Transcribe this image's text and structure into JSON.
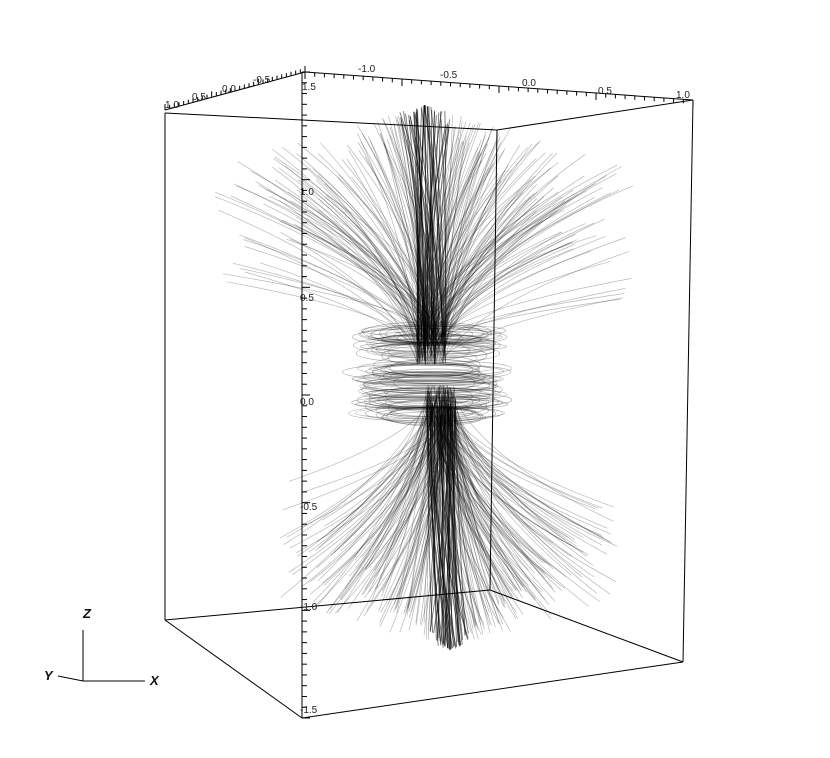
{
  "chart_data": {
    "type": "line",
    "title": "",
    "x_axis": {
      "label": "X",
      "ticks": [
        "-1.0",
        "-0.5",
        "0.0",
        "0.5",
        "1.0"
      ],
      "range": [
        -1.0,
        1.0
      ]
    },
    "y_axis": {
      "label": "Y",
      "ticks": [
        "1.0",
        "0.5",
        "0.0",
        "-0.5"
      ],
      "range": [
        -0.5,
        1.0
      ]
    },
    "z_axis": {
      "label": "Z",
      "ticks": [
        "1.5",
        "1.0",
        "0.5",
        "0.0",
        "-0.5",
        "-1.0",
        "-1.5"
      ],
      "range": [
        -1.5,
        1.5
      ]
    },
    "grid": false,
    "line_color": "#000000",
    "box_color": "#000000"
  },
  "triad": {
    "x": "X",
    "y": "Y",
    "z": "Z"
  }
}
